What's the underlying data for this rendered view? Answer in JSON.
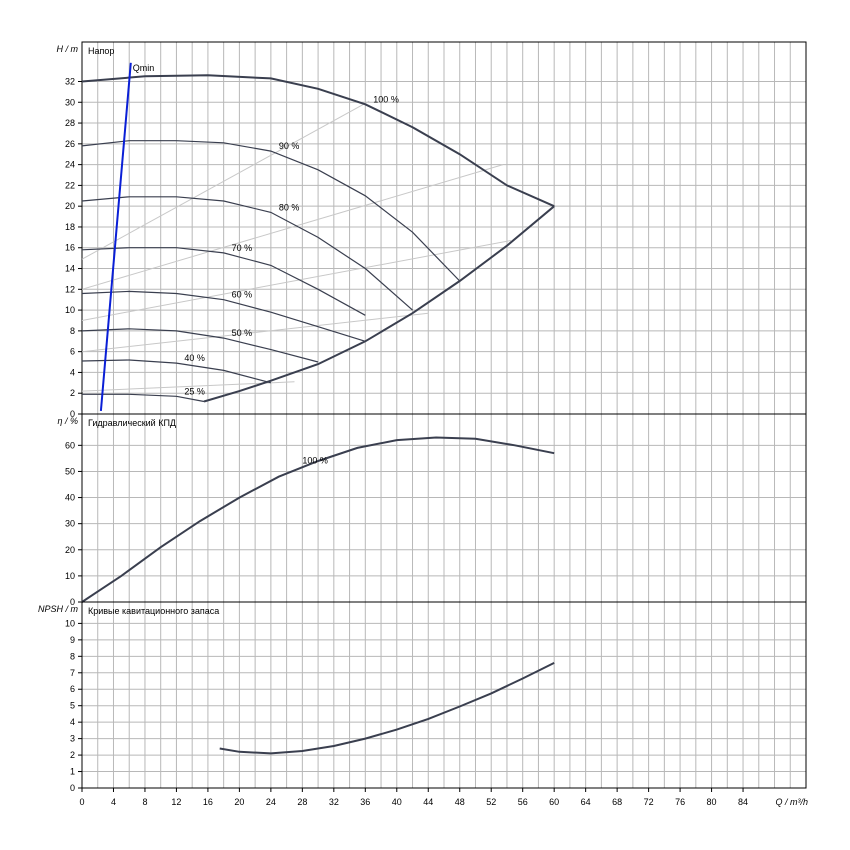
{
  "chart_data": [
    {
      "type": "line",
      "title": "Напор",
      "ylabel_var": "H",
      "ylabel_unit": "m",
      "xlim": [
        0,
        92
      ],
      "ylim": [
        0,
        35.8
      ],
      "yticks": [
        0,
        2,
        4,
        6,
        8,
        10,
        12,
        14,
        16,
        18,
        20,
        22,
        24,
        26,
        28,
        30,
        32
      ],
      "grid": true,
      "series": [
        {
          "name": "100 %",
          "x": [
            0,
            8,
            16,
            24,
            30,
            36,
            42,
            48,
            54,
            60
          ],
          "values": [
            32.0,
            32.5,
            32.6,
            32.3,
            31.3,
            29.8,
            27.6,
            25.0,
            22.0,
            20.0
          ]
        },
        {
          "name": "90 %",
          "x": [
            0,
            6,
            12,
            18,
            24,
            30,
            36,
            42,
            48
          ],
          "values": [
            25.8,
            26.3,
            26.3,
            26.1,
            25.3,
            23.5,
            21.0,
            17.5,
            12.8
          ]
        },
        {
          "name": "80 %",
          "x": [
            0,
            6,
            12,
            18,
            24,
            30,
            36,
            42
          ],
          "values": [
            20.5,
            20.9,
            20.9,
            20.5,
            19.4,
            17.0,
            14.0,
            10.0
          ]
        },
        {
          "name": "70 %",
          "x": [
            0,
            6,
            12,
            18,
            24,
            30,
            36
          ],
          "values": [
            15.8,
            16.0,
            16.0,
            15.5,
            14.3,
            12.0,
            9.5
          ]
        },
        {
          "name": "60 %",
          "x": [
            0,
            6,
            12,
            18,
            24,
            30,
            36
          ],
          "values": [
            11.6,
            11.8,
            11.6,
            11.0,
            9.8,
            8.4,
            7.0
          ]
        },
        {
          "name": "50 %",
          "x": [
            0,
            6,
            12,
            18,
            24,
            30
          ],
          "values": [
            8.0,
            8.2,
            8.0,
            7.3,
            6.2,
            5.0
          ]
        },
        {
          "name": "40 %",
          "x": [
            0,
            6,
            12,
            18,
            24
          ],
          "values": [
            5.1,
            5.2,
            4.9,
            4.2,
            3.0
          ]
        },
        {
          "name": "25 %",
          "x": [
            0,
            6,
            12,
            15.5
          ],
          "values": [
            1.9,
            1.9,
            1.7,
            1.2
          ]
        },
        {
          "name": "",
          "x": [
            15.5,
            20,
            24,
            30,
            36,
            42,
            48,
            54,
            60
          ],
          "values": [
            1.2,
            2.2,
            3.2,
            4.8,
            7.0,
            9.7,
            12.8,
            16.2,
            20.0
          ]
        },
        {
          "name": "Qmin",
          "x": [
            2.4,
            6.2
          ],
          "values": [
            0.3,
            33.8
          ]
        }
      ],
      "efficiency_lines": [
        {
          "x": [
            0,
            36.5
          ],
          "values": [
            14.9,
            30.1
          ]
        },
        {
          "x": [
            0,
            53.5
          ],
          "values": [
            12.0,
            24.0
          ]
        },
        {
          "x": [
            0,
            54.5
          ],
          "values": [
            9.0,
            16.7
          ]
        },
        {
          "x": [
            0,
            44
          ],
          "values": [
            6.0,
            9.7
          ]
        },
        {
          "x": [
            0,
            27
          ],
          "values": [
            2.2,
            3.1
          ]
        }
      ]
    },
    {
      "type": "line",
      "title": "Гидравлический КПД",
      "ylabel_var": "η",
      "ylabel_unit": "%",
      "xlim": [
        0,
        92
      ],
      "ylim": [
        0,
        72
      ],
      "yticks": [
        0,
        10,
        20,
        30,
        40,
        50,
        60
      ],
      "grid": true,
      "series": [
        {
          "name": "100 %",
          "x": [
            0,
            2,
            5,
            10,
            15,
            20,
            25,
            30,
            35,
            40,
            45,
            50,
            55,
            60
          ],
          "values": [
            0,
            4,
            10,
            21,
            31,
            40,
            48,
            54,
            59,
            62,
            63,
            62.5,
            60,
            57
          ]
        }
      ]
    },
    {
      "type": "line",
      "title": "Кривые кавитационного запаса",
      "ylabel_var": "NPSH",
      "ylabel_unit": "m",
      "xlim": [
        0,
        92
      ],
      "ylim": [
        0,
        11.3
      ],
      "yticks": [
        0,
        1,
        2,
        3,
        4,
        5,
        6,
        7,
        8,
        9,
        10
      ],
      "grid": true,
      "series": [
        {
          "name": "",
          "x": [
            17.5,
            20,
            24,
            28,
            32,
            36,
            40,
            44,
            48,
            52,
            56,
            60
          ],
          "values": [
            2.4,
            2.2,
            2.1,
            2.25,
            2.55,
            3.0,
            3.55,
            4.2,
            4.95,
            5.75,
            6.65,
            7.6
          ]
        }
      ]
    }
  ],
  "x_axis": {
    "ticks": [
      0,
      4,
      8,
      12,
      16,
      20,
      24,
      28,
      32,
      36,
      40,
      44,
      48,
      52,
      56,
      60,
      64,
      68,
      72,
      76,
      80,
      84
    ],
    "label_var": "Q",
    "label_unit": "m³/h"
  },
  "colors": {
    "curve": "#3a3f4f",
    "qmin": "#0a1fd6",
    "grid": "#b8b8b8",
    "eff": "#c8c8c8"
  }
}
